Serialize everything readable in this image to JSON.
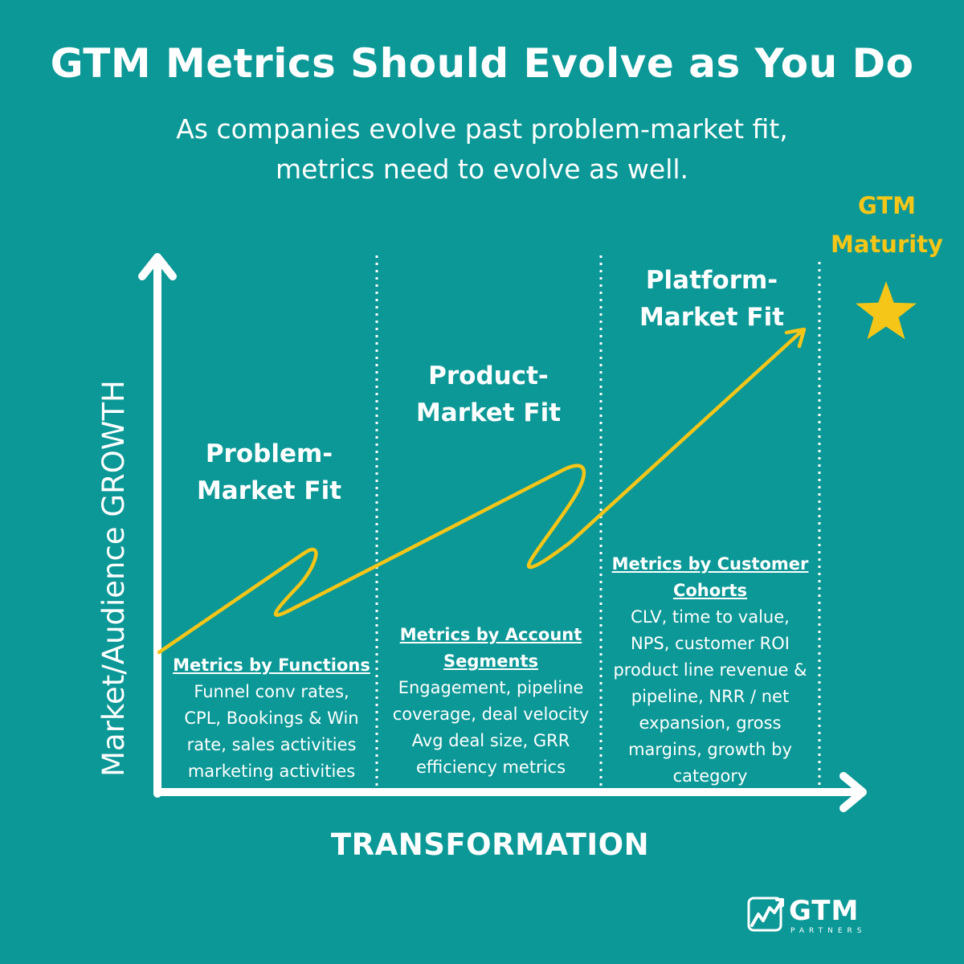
{
  "title": "GTM Metrics Should Evolve as You Do",
  "subtitle_line1": "As companies evolve past problem-market fit,",
  "subtitle_line2": "metrics need to evolve as well.",
  "y_axis_label": "Market/Audience GROWTH",
  "x_axis_label": "TRANSFORMATION",
  "maturity": {
    "line1": "GTM",
    "line2": "Maturity",
    "icon": "star-icon"
  },
  "stages": [
    {
      "title_line1": "Problem-",
      "title_line2": "Market Fit",
      "metrics_heading": "Metrics by Functions",
      "metrics_lines": [
        "Funnel conv rates,",
        "CPL, Bookings & Win",
        "rate, sales activities",
        "marketing activities"
      ]
    },
    {
      "title_line1": "Product-",
      "title_line2": "Market Fit",
      "metrics_heading_line1": "Metrics by Account",
      "metrics_heading_line2": "Segments",
      "metrics_lines": [
        "Engagement, pipeline",
        "coverage, deal velocity",
        "Avg deal size, GRR",
        "efficiency metrics"
      ]
    },
    {
      "title_line1": "Platform-",
      "title_line2": "Market Fit",
      "metrics_heading_line1": "Metrics by Customer",
      "metrics_heading_line2": "Cohorts",
      "metrics_lines": [
        "CLV, time to value,",
        "NPS, customer ROI",
        "product line revenue &",
        "pipeline, NRR / net",
        "expansion, gross",
        "margins, growth by",
        "category"
      ]
    }
  ],
  "logo": {
    "name": "GTM",
    "sub": "PARTNERS",
    "icon": "rising-chart-icon"
  },
  "colors": {
    "background": "#0b9896",
    "accent": "#f5c518",
    "text": "#ffffff"
  }
}
